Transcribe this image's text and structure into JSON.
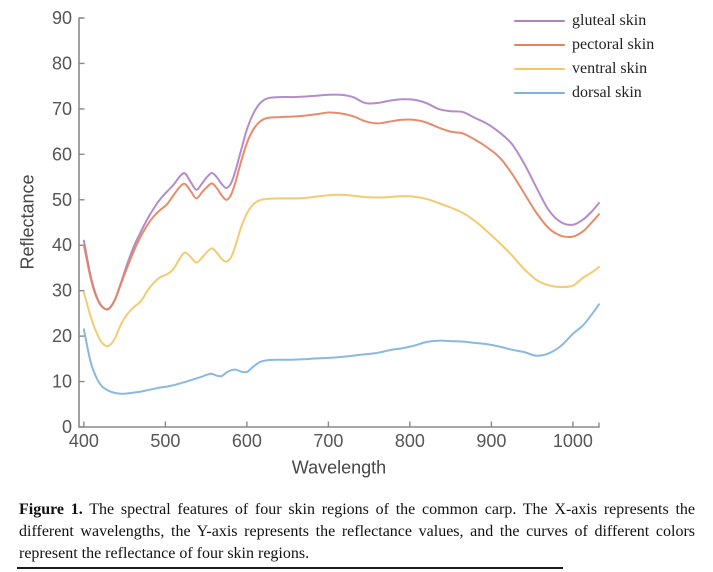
{
  "figure": {
    "caption_label": "Figure 1.",
    "caption_text": "The spectral features of four skin regions of the common carp. The X-axis represents the different wavelengths, the Y-axis represents the reflectance values, and the curves of different colors represent the reflectance of four skin regions."
  },
  "chart_data": {
    "type": "line",
    "title": "",
    "xlabel": "Wavelength",
    "ylabel": "Reflectance",
    "xlim": [
      394,
      1032
    ],
    "ylim": [
      0,
      90
    ],
    "x_ticks": [
      400,
      500,
      600,
      700,
      800,
      900,
      1000
    ],
    "y_ticks": [
      0,
      10,
      20,
      30,
      40,
      50,
      60,
      70,
      80,
      90
    ],
    "grid": false,
    "legend_position": "top-right",
    "x": [
      400,
      408,
      415,
      422,
      430,
      438,
      446,
      454,
      462,
      470,
      478,
      486,
      494,
      502,
      510,
      518,
      524,
      531,
      538,
      545,
      551,
      557,
      563,
      569,
      575,
      581,
      587,
      593,
      600,
      608,
      616,
      625,
      640,
      655,
      670,
      685,
      700,
      715,
      730,
      745,
      760,
      775,
      790,
      805,
      820,
      835,
      850,
      865,
      880,
      895,
      910,
      925,
      940,
      955,
      970,
      985,
      1000,
      1012,
      1022,
      1032
    ],
    "series": [
      {
        "name": "gluteal skin",
        "color": "#ae82c6",
        "values": [
          41.0,
          33.5,
          29.0,
          26.6,
          25.9,
          28.0,
          32.0,
          36.3,
          40.0,
          43.0,
          45.8,
          48.2,
          50.2,
          51.8,
          53.3,
          55.2,
          55.8,
          53.9,
          52.2,
          53.6,
          55.0,
          55.9,
          55.0,
          53.5,
          52.6,
          53.8,
          57.0,
          61.0,
          65.5,
          69.0,
          71.2,
          72.3,
          72.6,
          72.6,
          72.7,
          72.9,
          73.1,
          73.1,
          72.6,
          71.3,
          71.3,
          71.8,
          72.1,
          72.0,
          71.3,
          70.0,
          69.5,
          69.3,
          68.0,
          66.7,
          64.8,
          62.3,
          58.0,
          52.8,
          47.8,
          45.1,
          44.5,
          45.6,
          47.2,
          49.3
        ]
      },
      {
        "name": "pectoral skin",
        "color": "#e5825e",
        "values": [
          40.0,
          33.0,
          28.8,
          26.5,
          26.0,
          28.0,
          31.8,
          35.5,
          39.0,
          42.0,
          44.5,
          46.4,
          47.8,
          49.0,
          51.0,
          52.9,
          53.5,
          51.9,
          50.3,
          51.7,
          52.8,
          53.6,
          52.6,
          51.0,
          50.0,
          51.3,
          54.5,
          58.5,
          62.5,
          65.5,
          67.2,
          68.0,
          68.2,
          68.3,
          68.5,
          68.8,
          69.2,
          69.0,
          68.4,
          67.3,
          66.8,
          67.2,
          67.6,
          67.6,
          67.0,
          65.9,
          65.0,
          64.6,
          63.2,
          61.5,
          59.3,
          55.8,
          51.5,
          47.2,
          43.8,
          42.1,
          41.9,
          43.0,
          44.8,
          46.8
        ]
      },
      {
        "name": "ventral skin",
        "color": "#f3c666",
        "values": [
          29.6,
          24.5,
          21.0,
          18.6,
          17.8,
          19.5,
          22.8,
          25.0,
          26.5,
          27.7,
          30.0,
          31.8,
          33.0,
          33.6,
          34.8,
          37.2,
          38.4,
          37.4,
          36.2,
          37.3,
          38.5,
          39.3,
          38.4,
          37.0,
          36.4,
          37.5,
          40.5,
          44.0,
          47.0,
          49.0,
          49.9,
          50.2,
          50.3,
          50.3,
          50.4,
          50.7,
          51.0,
          51.1,
          50.9,
          50.6,
          50.5,
          50.6,
          50.8,
          50.7,
          50.2,
          49.3,
          48.3,
          47.1,
          45.3,
          43.0,
          40.5,
          37.8,
          34.8,
          32.4,
          31.2,
          30.8,
          31.1,
          32.8,
          33.9,
          35.2
        ]
      },
      {
        "name": "dorsal skin",
        "color": "#7fb2e0",
        "values": [
          21.5,
          14.5,
          11.0,
          9.0,
          8.0,
          7.5,
          7.3,
          7.4,
          7.6,
          7.8,
          8.1,
          8.4,
          8.7,
          8.9,
          9.2,
          9.6,
          9.9,
          10.3,
          10.7,
          11.1,
          11.5,
          11.7,
          11.3,
          11.2,
          12.0,
          12.5,
          12.6,
          12.2,
          12.1,
          13.3,
          14.3,
          14.7,
          14.8,
          14.8,
          14.9,
          15.1,
          15.2,
          15.4,
          15.7,
          16.0,
          16.3,
          16.9,
          17.3,
          17.9,
          18.7,
          19.0,
          18.9,
          18.8,
          18.5,
          18.2,
          17.7,
          17.0,
          16.5,
          15.7,
          16.2,
          17.8,
          20.5,
          22.3,
          24.5,
          27.0
        ]
      }
    ]
  }
}
